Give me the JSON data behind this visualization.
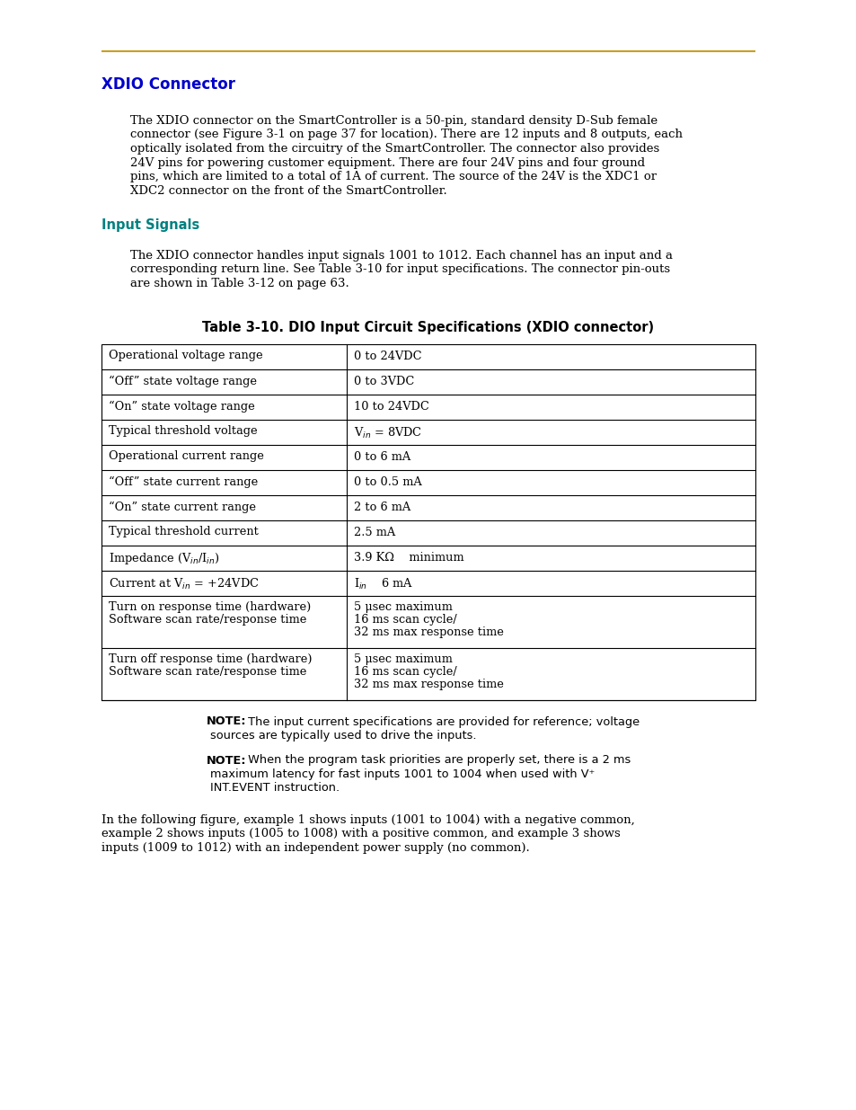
{
  "page_bg": "#ffffff",
  "top_rule_color": "#c8a020",
  "section_title": "XDIO Connector",
  "section_title_color": "#0000cc",
  "subsection_title": "Input Signals",
  "subsection_title_color": "#008080",
  "body_color": "#000000",
  "link_color": "#008080",
  "table_title": "Table 3-10. DIO Input Circuit Specifications (XDIO connector)",
  "table_rows": [
    [
      "Operational voltage range",
      "0 to 24VDC",
      false
    ],
    [
      "“Off” state voltage range",
      "0 to 3VDC",
      false
    ],
    [
      "“On” state voltage range",
      "10 to 24VDC",
      false
    ],
    [
      "Typical threshold voltage",
      "V$_{in}$ = 8VDC",
      false
    ],
    [
      "Operational current range",
      "0 to 6 mA",
      false
    ],
    [
      "“Off” state current range",
      "0 to 0.5 mA",
      false
    ],
    [
      "“On” state current range",
      "2 to 6 mA",
      false
    ],
    [
      "Typical threshold current",
      "2.5 mA",
      false
    ],
    [
      "Impedance (V$_{in}$/I$_{in}$)",
      "3.9 KΩ    minimum",
      false
    ],
    [
      "Current at V$_{in}$ = +24VDC",
      "I$_{in}$    6 mA",
      false
    ],
    [
      "Turn on response time (hardware)\nSoftware scan rate/response time",
      "5 μsec maximum\n16 ms scan cycle/\n32 ms max response time",
      true
    ],
    [
      "Turn off response time (hardware)\nSoftware scan rate/response time",
      "5 μsec maximum\n16 ms scan cycle/\n32 ms max response time",
      true
    ]
  ],
  "note1_bold": "NOTE:",
  "note1_text": " The input current specifications are provided for reference; voltage\nsources are typically used to drive the inputs.",
  "note2_bold": "NOTE:",
  "note2_text": " When the program task priorities are properly set, there is a 2 ms\nmaximum latency for fast inputs 1001 to 1004 when used with V⁺\nINT.EVENT instruction.",
  "para3_lines": [
    "In the following figure, example 1 shows inputs (1001 to 1004) with a negative common,",
    "example 2 shows inputs (1005 to 1008) with a positive common, and example 3 shows",
    "inputs (1009 to 1012) with an independent power supply (no common)."
  ]
}
